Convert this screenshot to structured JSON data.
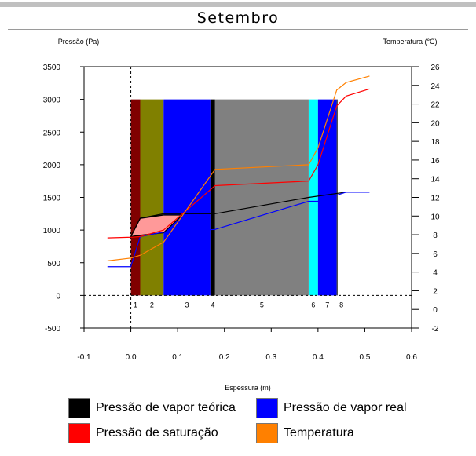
{
  "title": "Setembro",
  "chart_data": {
    "type": "line",
    "title": "Setembro",
    "xlabel": "Espessura (m)",
    "ylabel_left": "Pressão (Pa)",
    "ylabel_right": "Temperatura (°C)",
    "xlim": [
      -0.1,
      0.6
    ],
    "ylim_left": [
      -500,
      3500
    ],
    "ylim_right": [
      -2,
      26
    ],
    "x_ticks": [
      "-0.1",
      "0.0",
      "0.1",
      "0.2",
      "0.3",
      "0.4",
      "0.5",
      "0.6"
    ],
    "y_left_ticks": [
      "-500",
      "0",
      "500",
      "1000",
      "1500",
      "2000",
      "2500",
      "3000",
      "3500"
    ],
    "y_right_ticks": [
      "-2",
      "0",
      "2",
      "4",
      "6",
      "8",
      "10",
      "12",
      "14",
      "16",
      "18",
      "20",
      "22",
      "24",
      "26"
    ],
    "layers": [
      {
        "label": "1",
        "x0": 0.0,
        "x1": 0.02,
        "color": "#800000"
      },
      {
        "label": "2",
        "x0": 0.02,
        "x1": 0.07,
        "color": "#808000"
      },
      {
        "label": "3",
        "x0": 0.07,
        "x1": 0.17,
        "color": "#0000ff"
      },
      {
        "label": "4",
        "x0": 0.17,
        "x1": 0.18,
        "color": "#000000"
      },
      {
        "label": "5",
        "x0": 0.18,
        "x1": 0.38,
        "color": "#808080"
      },
      {
        "label": "6",
        "x0": 0.38,
        "x1": 0.4,
        "color": "#00ffff"
      },
      {
        "label": "7",
        "x0": 0.4,
        "x1": 0.44,
        "color": "#0000ff"
      },
      {
        "label": "8",
        "x0": 0.44,
        "x1": 0.46,
        "color": "#ffffff"
      }
    ],
    "layer_top_value": 3000,
    "condensation_zone": {
      "color": "#ff9999",
      "points": [
        [
          0.0,
          900
        ],
        [
          0.02,
          1180
        ],
        [
          0.07,
          1230
        ],
        [
          0.11,
          1230
        ],
        [
          0.07,
          960
        ],
        [
          0.02,
          920
        ]
      ]
    },
    "series": [
      {
        "name": "Pressão de vapor teórica",
        "color": "#000000",
        "axis": "left",
        "x": [
          0.02,
          0.07,
          0.18,
          0.38,
          0.46
        ],
        "y": [
          1180,
          1250,
          1250,
          1500,
          1580
        ]
      },
      {
        "name": "Pressão de vapor real",
        "color": "#0000ff",
        "axis": "left",
        "x": [
          -0.05,
          0.0,
          0.02,
          0.07,
          0.18,
          0.38,
          0.4,
          0.46,
          0.51
        ],
        "y": [
          440,
          440,
          900,
          970,
          1010,
          1440,
          1440,
          1580,
          1580
        ]
      },
      {
        "name": "Pressão de saturação",
        "color": "#ff0000",
        "axis": "left",
        "x": [
          -0.05,
          0.0,
          0.02,
          0.07,
          0.18,
          0.38,
          0.4,
          0.44,
          0.46,
          0.51
        ],
        "y": [
          880,
          890,
          900,
          1000,
          1680,
          1750,
          2000,
          2900,
          3050,
          3160
        ]
      },
      {
        "name": "Temperatura",
        "color": "#ff8000",
        "axis": "right",
        "x": [
          -0.05,
          0.0,
          0.02,
          0.07,
          0.18,
          0.38,
          0.4,
          0.44,
          0.46,
          0.51
        ],
        "y": [
          5.2,
          5.5,
          5.8,
          7.2,
          15,
          15.5,
          17.3,
          23.5,
          24.3,
          25
        ]
      }
    ],
    "legend": [
      {
        "label": "Pressão de vapor teórica",
        "color": "#000000"
      },
      {
        "label": "Pressão de vapor real",
        "color": "#0000ff"
      },
      {
        "label": "Pressão de saturação",
        "color": "#ff0000"
      },
      {
        "label": "Temperatura",
        "color": "#ff8000"
      }
    ],
    "legend_position": "bottom"
  }
}
